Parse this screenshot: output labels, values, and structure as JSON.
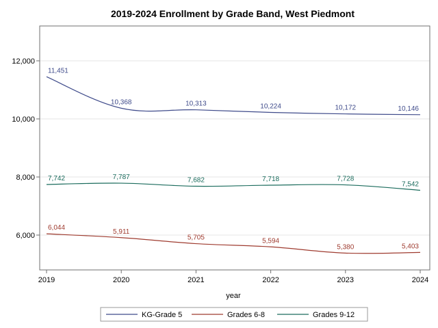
{
  "chart_data": {
    "type": "line",
    "title": "2019-2024 Enrollment by Grade Band, West Piedmont",
    "xlabel": "year",
    "ylabel": "",
    "x": [
      2019,
      2020,
      2021,
      2022,
      2023,
      2024
    ],
    "xlim": [
      2019,
      2024
    ],
    "ylim": [
      4800,
      13200
    ],
    "yticks": [
      6000,
      8000,
      10000,
      12000
    ],
    "ytick_labels": [
      "6,000",
      "8,000",
      "10,000",
      "12,000"
    ],
    "grid": "horizontal",
    "legend_position": "bottom",
    "series": [
      {
        "name": "KG-Grade 5",
        "color": "#3e4a8a",
        "values": [
          11451,
          10368,
          10313,
          10224,
          10172,
          10146
        ],
        "labels": [
          "11,451",
          "10,368",
          "10,313",
          "10,224",
          "10,172",
          "10,146"
        ]
      },
      {
        "name": "Grades 6-8",
        "color": "#9e3a2e",
        "values": [
          6044,
          5911,
          5705,
          5594,
          5380,
          5403
        ],
        "labels": [
          "6,044",
          "5,911",
          "5,705",
          "5,594",
          "5,380",
          "5,403"
        ]
      },
      {
        "name": "Grades 9-12",
        "color": "#1a6b5c",
        "values": [
          7742,
          7787,
          7682,
          7718,
          7728,
          7542
        ],
        "labels": [
          "7,742",
          "7,787",
          "7,682",
          "7,718",
          "7,728",
          "7,542"
        ]
      }
    ]
  }
}
